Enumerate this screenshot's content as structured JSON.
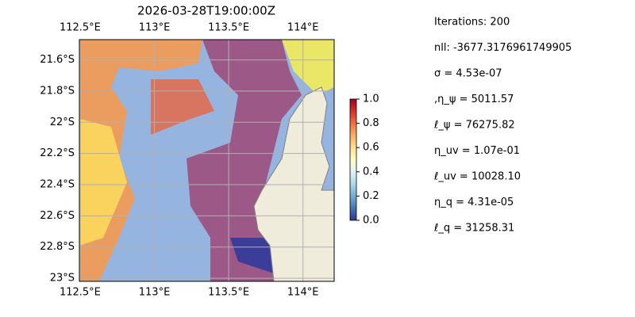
{
  "title": "2026-03-28T19:00:00Z",
  "map": {
    "lonlim": [
      112.495,
      114.21
    ],
    "latlim": [
      -21.47,
      -23.02
    ],
    "lon_ticks": [
      {
        "value": 112.5,
        "label": "112.5°E"
      },
      {
        "value": 113,
        "label": "113°E"
      },
      {
        "value": 113.5,
        "label": "113.5°E"
      },
      {
        "value": 114,
        "label": "114°E"
      }
    ],
    "lat_ticks": [
      {
        "value": -21.6,
        "label": "21.6°S"
      },
      {
        "value": -21.8,
        "label": "21.8°S"
      },
      {
        "value": -22,
        "label": "22°S"
      },
      {
        "value": -22.2,
        "label": "22.2°S"
      },
      {
        "value": -22.4,
        "label": "22.4°S"
      },
      {
        "value": -22.6,
        "label": "22.6°S"
      },
      {
        "value": -22.8,
        "label": "22.8°S"
      },
      {
        "value": -23,
        "label": "23°S"
      }
    ],
    "grid": true
  },
  "colorbar": {
    "lim": [
      0,
      1
    ],
    "ticks": [
      {
        "value": 0,
        "label": "0.0"
      },
      {
        "value": 0.2,
        "label": "0.2"
      },
      {
        "value": 0.4,
        "label": "0.4"
      },
      {
        "value": 0.6,
        "label": "0.6"
      },
      {
        "value": 0.8,
        "label": "0.8"
      },
      {
        "value": 1,
        "label": "1.0"
      }
    ]
  },
  "info": [
    "Iterations: 200",
    "nll: -3677.3176961749905",
    "σ = 4.53e-07",
    ",η_ψ = 5011.57",
    "ℓ_ψ = 76275.82",
    "η_uv = 1.07e-01",
    "ℓ_uv = 10028.10",
    "η_q = 4.31e-05",
    "ℓ_q = 31258.31"
  ]
}
